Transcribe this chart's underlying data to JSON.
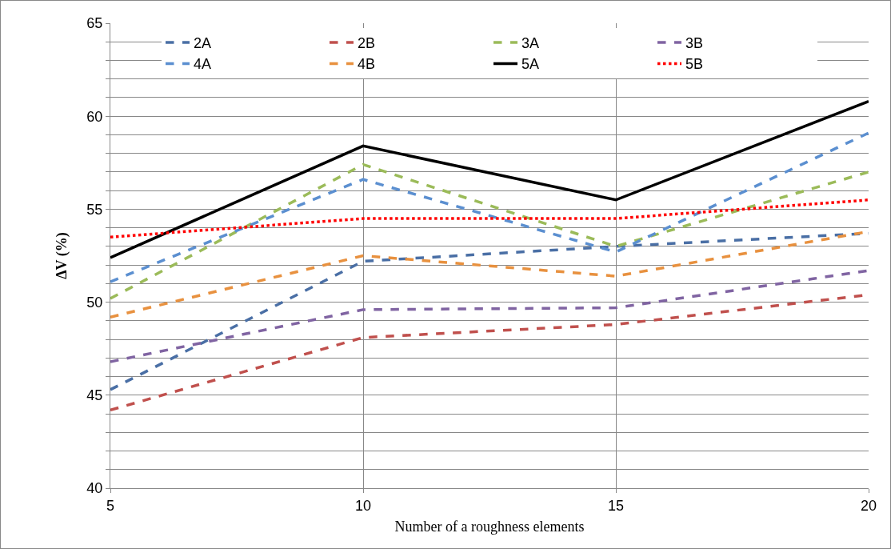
{
  "chart_data": {
    "type": "line",
    "xlabel": "Number of a roughness elements",
    "ylabel": "ΔV (%)",
    "x": [
      5,
      10,
      15,
      20
    ],
    "series": [
      {
        "name": "2A",
        "color": "#4a6fa5",
        "line_style": "dashed",
        "values": [
          45.3,
          52.2,
          53.0,
          53.7
        ]
      },
      {
        "name": "2B",
        "color": "#c0504d",
        "line_style": "dashed",
        "values": [
          44.2,
          48.1,
          48.8,
          50.4
        ]
      },
      {
        "name": "3A",
        "color": "#9bbb59",
        "line_style": "dashed",
        "values": [
          50.2,
          57.4,
          53.0,
          57.0
        ]
      },
      {
        "name": "3B",
        "color": "#8064a2",
        "line_style": "dashed",
        "values": [
          46.8,
          49.6,
          49.7,
          51.7
        ]
      },
      {
        "name": "4A",
        "color": "#5b8fd0",
        "line_style": "dashed",
        "values": [
          51.1,
          56.6,
          52.7,
          59.1
        ]
      },
      {
        "name": "4B",
        "color": "#e8913f",
        "line_style": "dashed",
        "values": [
          49.2,
          52.5,
          51.4,
          53.8
        ]
      },
      {
        "name": "5A",
        "color": "#000000",
        "line_style": "solid",
        "values": [
          52.4,
          58.4,
          55.5,
          60.8
        ]
      },
      {
        "name": "5B",
        "color": "#ff0000",
        "line_style": "dotted",
        "values": [
          53.5,
          54.5,
          54.5,
          55.5
        ]
      }
    ],
    "xlim": [
      5,
      20
    ],
    "xticks": [
      5,
      10,
      15,
      20
    ],
    "ylim": [
      40,
      65
    ],
    "yticks": [
      40,
      {
        "value": 41,
        "label": null
      },
      {
        "value": 42,
        "label": null
      },
      {
        "value": 43,
        "label": null
      },
      {
        "value": 44,
        "label": null
      },
      45,
      {
        "value": 46,
        "label": null
      },
      {
        "value": 47,
        "label": null
      },
      {
        "value": 48,
        "label": null
      },
      {
        "value": 49,
        "label": null
      },
      50,
      {
        "value": 51,
        "label": null
      },
      {
        "value": 52,
        "label": null
      },
      {
        "value": 53,
        "label": null
      },
      {
        "value": 54,
        "label": null
      },
      55,
      {
        "value": 56,
        "label": null
      },
      {
        "value": 57,
        "label": null
      },
      {
        "value": 58,
        "label": null
      },
      {
        "value": 59,
        "label": null
      },
      60,
      {
        "value": 61,
        "label": null
      },
      {
        "value": 62,
        "label": null
      },
      {
        "value": 63,
        "label": null
      },
      {
        "value": 64,
        "label": null
      },
      65
    ],
    "grid": true,
    "legend": "top",
    "marker": "none"
  }
}
